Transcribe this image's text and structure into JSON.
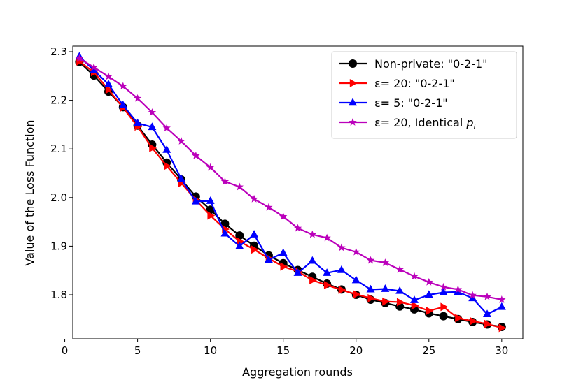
{
  "chart_data": {
    "type": "line",
    "title": "",
    "xlabel": "Aggregation rounds",
    "ylabel": "Value of the Loss Function",
    "xlim": [
      0.55,
      31.45
    ],
    "ylim": [
      1.7095,
      2.3115
    ],
    "xticks": [
      0,
      5,
      10,
      15,
      20,
      25,
      30
    ],
    "yticks": [
      1.8,
      1.9,
      2.0,
      2.1,
      2.2,
      2.3
    ],
    "ytick_labels": [
      "1.8",
      "1.9",
      "2.0",
      "2.1",
      "2.2",
      "2.3"
    ],
    "grid": false,
    "legend_position": "top-right",
    "x": [
      1,
      2,
      3,
      4,
      5,
      6,
      7,
      8,
      9,
      10,
      11,
      12,
      13,
      14,
      15,
      16,
      17,
      18,
      19,
      20,
      21,
      22,
      23,
      24,
      25,
      26,
      27,
      28,
      29,
      30
    ],
    "series": [
      {
        "name": "Non-private: \"0-2-1\"",
        "color": "#000000",
        "marker": "circle",
        "values": [
          2.279,
          2.251,
          2.218,
          2.186,
          2.148,
          2.109,
          2.072,
          2.037,
          2.002,
          1.975,
          1.946,
          1.922,
          1.901,
          1.881,
          1.865,
          1.851,
          1.837,
          1.823,
          1.811,
          1.8,
          1.79,
          1.783,
          1.776,
          1.77,
          1.762,
          1.756,
          1.75,
          1.744,
          1.739,
          1.734
        ]
      },
      {
        "name": "ε= 20: \"0-2-1\"",
        "color": "#ff0000",
        "marker": "triangle-right",
        "values": [
          2.28,
          2.258,
          2.222,
          2.185,
          2.146,
          2.102,
          2.065,
          2.03,
          1.995,
          1.963,
          1.935,
          1.91,
          1.893,
          1.875,
          1.858,
          1.848,
          1.83,
          1.82,
          1.81,
          1.801,
          1.793,
          1.786,
          1.785,
          1.778,
          1.767,
          1.775,
          1.752,
          1.746,
          1.74,
          1.732
        ]
      },
      {
        "name": "ε= 5: \"0-2-1\"",
        "color": "#0000ff",
        "marker": "triangle-up",
        "values": [
          2.29,
          2.262,
          2.233,
          2.19,
          2.153,
          2.145,
          2.098,
          2.038,
          1.992,
          1.993,
          1.926,
          1.9,
          1.924,
          1.872,
          1.886,
          1.845,
          1.87,
          1.845,
          1.851,
          1.83,
          1.811,
          1.812,
          1.808,
          1.789,
          1.8,
          1.805,
          1.806,
          1.793,
          1.76,
          1.775
        ]
      },
      {
        "name": "ε= 20, Identical p_i",
        "legend_main": "ε= 20, Identical ",
        "legend_italic": "p",
        "legend_sub": "i",
        "color": "#bb00bb",
        "marker": "star",
        "values": [
          2.286,
          2.268,
          2.249,
          2.229,
          2.204,
          2.175,
          2.143,
          2.116,
          2.086,
          2.062,
          2.033,
          2.022,
          1.997,
          1.98,
          1.961,
          1.937,
          1.924,
          1.917,
          1.897,
          1.888,
          1.871,
          1.866,
          1.852,
          1.838,
          1.826,
          1.816,
          1.811,
          1.799,
          1.796,
          1.79
        ]
      }
    ]
  }
}
